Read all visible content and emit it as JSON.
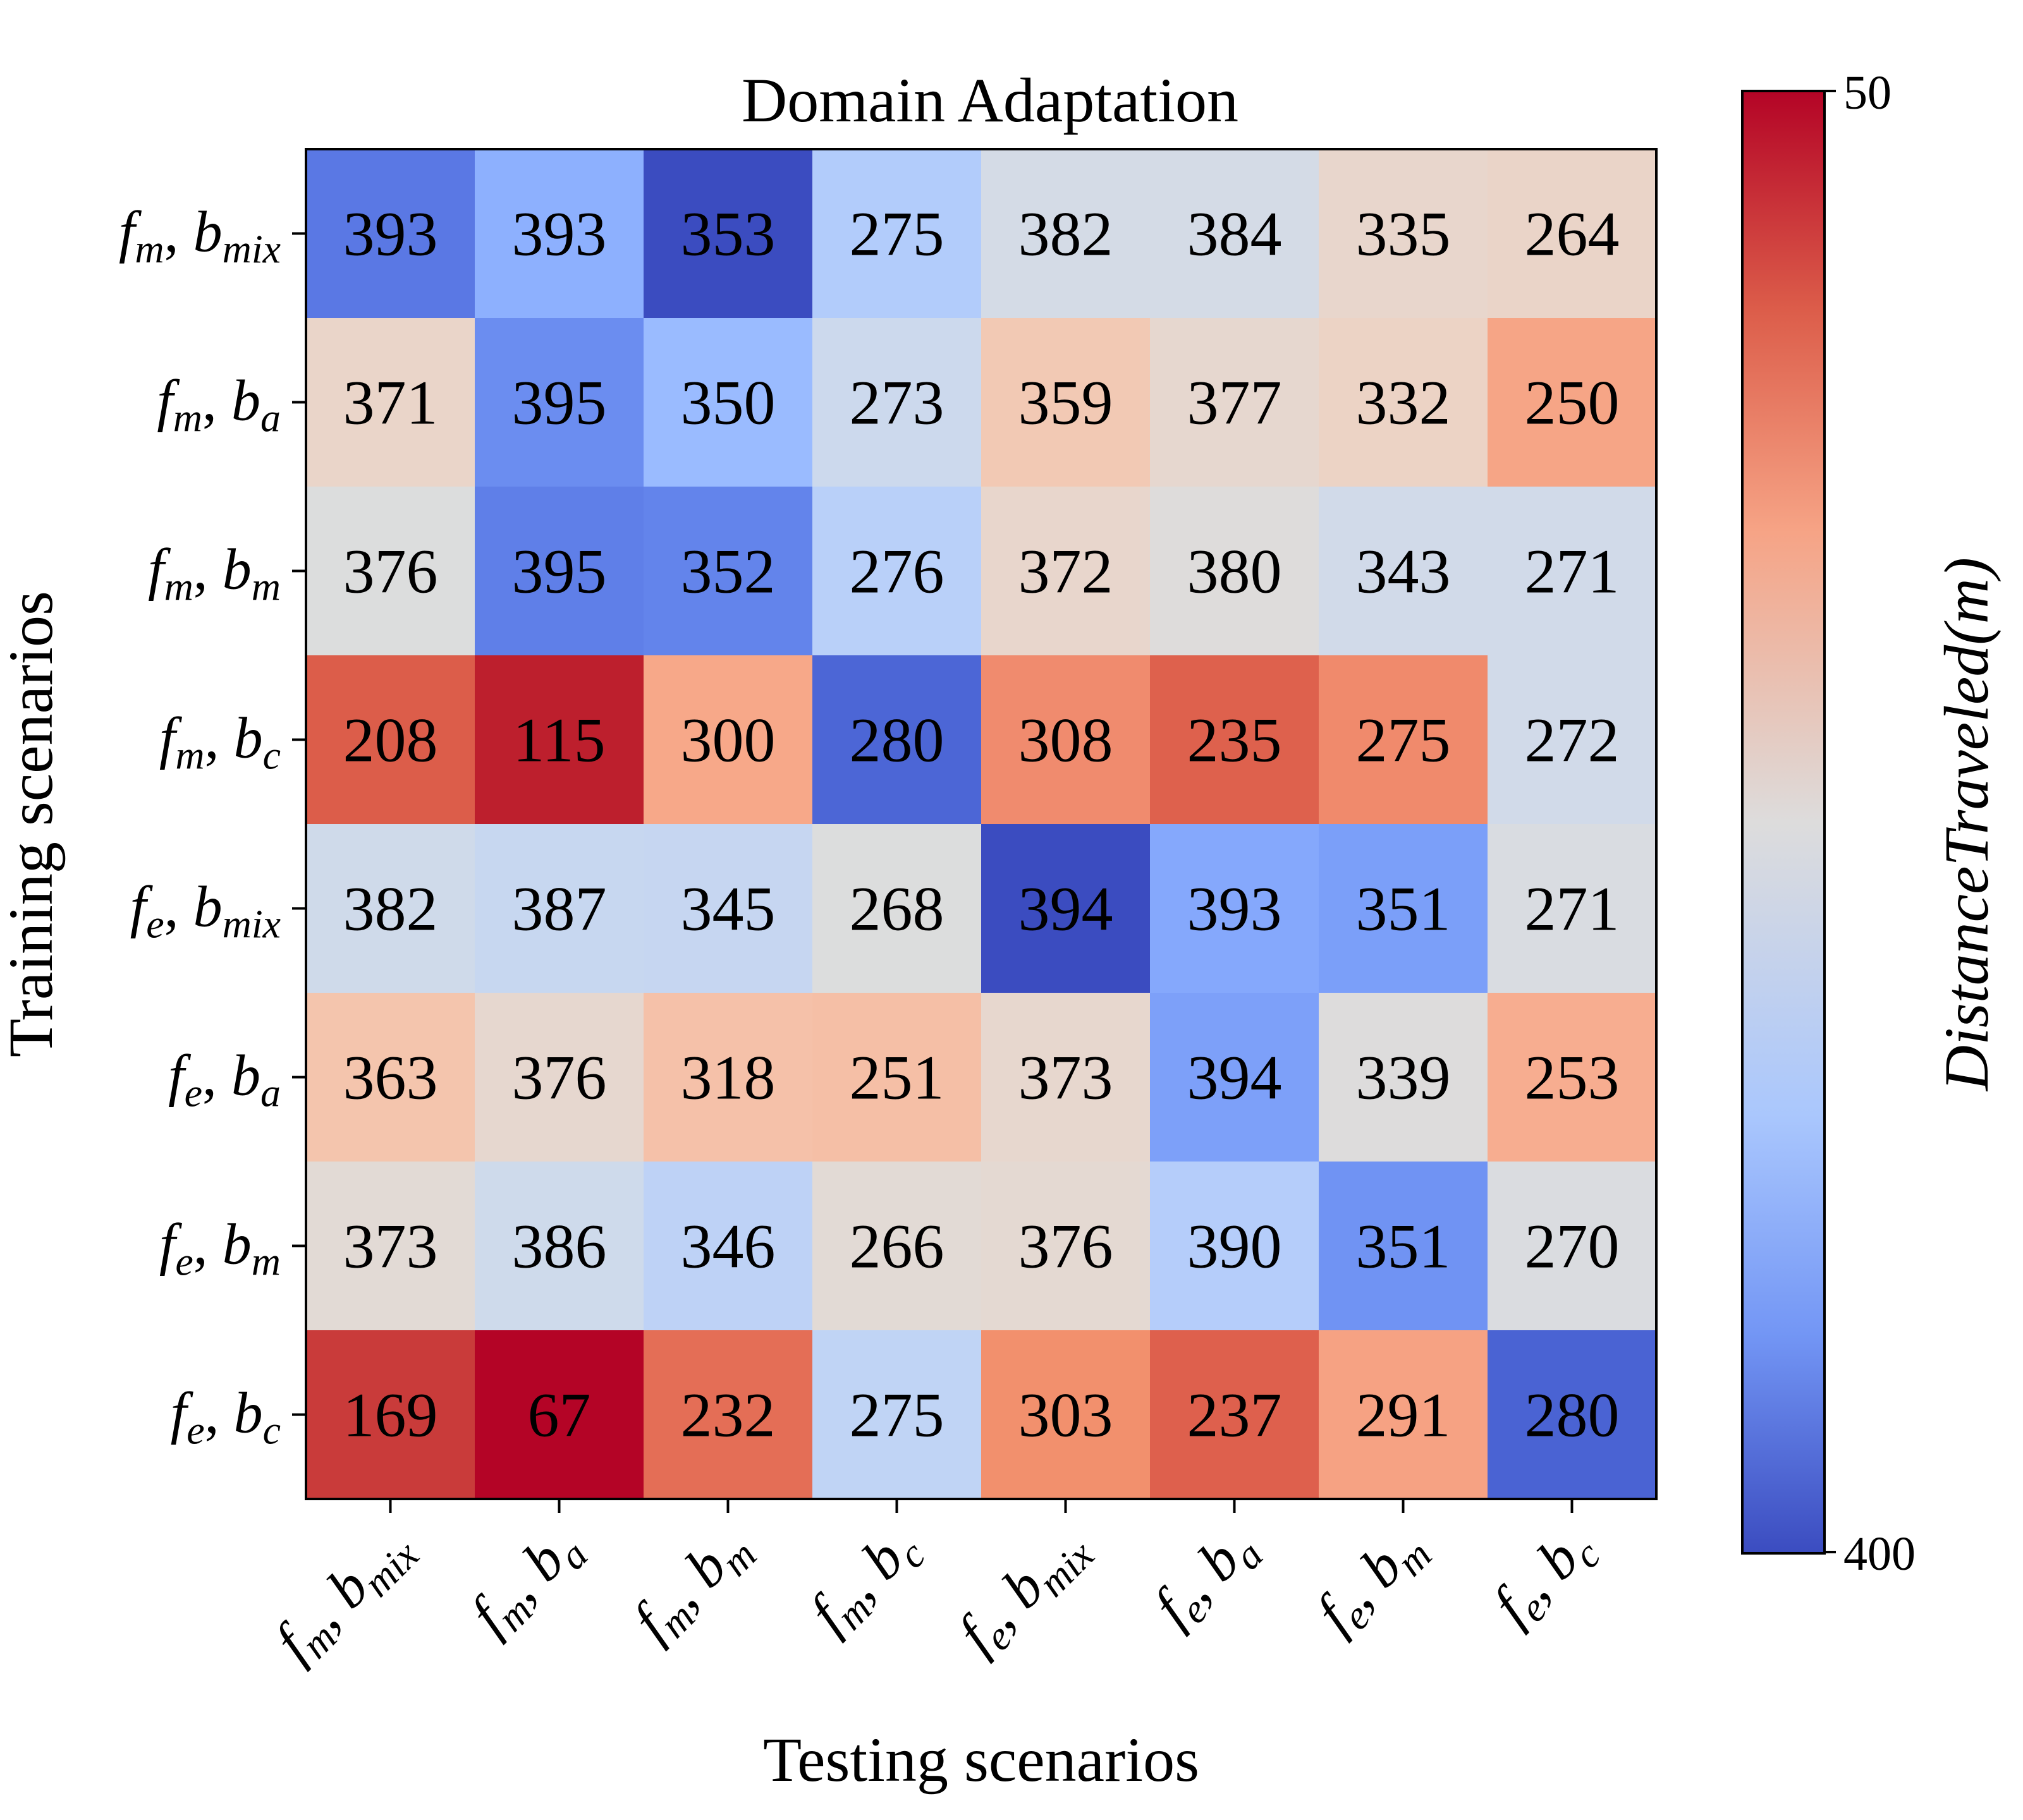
{
  "chart_data": {
    "type": "heatmap",
    "title": "Domain Adaptation",
    "xlabel": "Testing scenarios",
    "ylabel": "Training scenarios",
    "colorbar_label": "DistanceTraveled(m)",
    "colorbar_range": [
      50,
      400
    ],
    "colorbar_ticks": [
      "50",
      "400"
    ],
    "colormap": "coolwarm (reversed: high = blue, low = red)",
    "scenarios": [
      {
        "f": "f",
        "fsub": "m",
        "b": "b",
        "bsub": "mix"
      },
      {
        "f": "f",
        "fsub": "m",
        "b": "b",
        "bsub": "a"
      },
      {
        "f": "f",
        "fsub": "m",
        "b": "b",
        "bsub": "m"
      },
      {
        "f": "f",
        "fsub": "m",
        "b": "b",
        "bsub": "c"
      },
      {
        "f": "f",
        "fsub": "e",
        "b": "b",
        "bsub": "mix"
      },
      {
        "f": "f",
        "fsub": "e",
        "b": "b",
        "bsub": "a"
      },
      {
        "f": "f",
        "fsub": "e",
        "b": "b",
        "bsub": "m"
      },
      {
        "f": "f",
        "fsub": "e",
        "b": "b",
        "bsub": "c"
      }
    ],
    "values": [
      [
        393,
        393,
        353,
        275,
        382,
        384,
        335,
        264
      ],
      [
        371,
        395,
        350,
        273,
        359,
        377,
        332,
        250
      ],
      [
        376,
        395,
        352,
        276,
        372,
        380,
        343,
        271
      ],
      [
        208,
        115,
        300,
        280,
        308,
        235,
        275,
        272
      ],
      [
        382,
        387,
        345,
        268,
        394,
        393,
        351,
        271
      ],
      [
        363,
        376,
        318,
        251,
        373,
        394,
        339,
        253
      ],
      [
        373,
        386,
        346,
        266,
        376,
        390,
        351,
        270
      ],
      [
        169,
        67,
        232,
        275,
        303,
        237,
        291,
        280
      ]
    ],
    "cell_colors": [
      [
        "#5a78e4",
        "#8db0fe",
        "#3b4cc0",
        "#b2ccfb",
        "#d4dbe6",
        "#d4dbe6",
        "#e8d6cc",
        "#ead4c8"
      ],
      [
        "#ead5c9",
        "#6b8df0",
        "#9abbff",
        "#ccd9ed",
        "#f2c9b4",
        "#e6d7cf",
        "#ecd3c5",
        "#f6a586"
      ],
      [
        "#dcdddd",
        "#5f7fe8",
        "#6384eb",
        "#b9d0f9",
        "#e8d6cc",
        "#dedcdb",
        "#d1dae9",
        "#d1dae9"
      ],
      [
        "#dc5d4a",
        "#bd1f2d",
        "#f7a889",
        "#4c66d6",
        "#f08b6e",
        "#de614d",
        "#f08a6c",
        "#d1dae9"
      ],
      [
        "#cfdaea",
        "#c7d7f0",
        "#c6d6f1",
        "#dcdddd",
        "#3b4cc0",
        "#85a8fc",
        "#7b9ff9",
        "#d9dce1"
      ],
      [
        "#f4c5ad",
        "#e6d7cf",
        "#f5c1a9",
        "#f5bfa6",
        "#e7d7ce",
        "#7da0f9",
        "#dddcdc",
        "#f7ad90"
      ],
      [
        "#e2dad5",
        "#cedaeb",
        "#bed2f6",
        "#e2dad5",
        "#e4d9d2",
        "#b5cdfa",
        "#7093f3",
        "#dadce0"
      ],
      [
        "#c93b3a",
        "#b40426",
        "#e46e56",
        "#c0d4f5",
        "#f2906d",
        "#de604d",
        "#f6a283",
        "#4a63d3"
      ]
    ]
  }
}
